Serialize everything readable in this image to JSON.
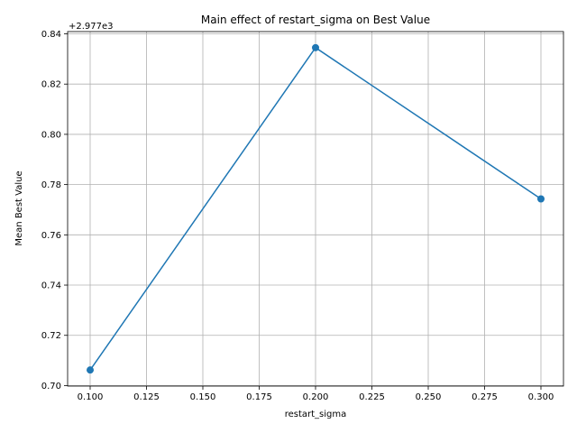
{
  "chart_data": {
    "type": "line",
    "title": "Main effect of restart_sigma on Best Value",
    "xlabel": "restart_sigma",
    "ylabel": "Mean Best Value",
    "y_offset_label": "+2.977e3",
    "x": [
      0.1,
      0.2,
      0.3
    ],
    "y": [
      2977.7062,
      2977.8345,
      2977.7743
    ],
    "xlim": [
      0.09,
      0.31
    ],
    "ylim": [
      2977.6998,
      2977.8409
    ],
    "x_ticks": [
      0.1,
      0.125,
      0.15,
      0.175,
      0.2,
      0.225,
      0.25,
      0.275,
      0.3
    ],
    "x_tick_labels": [
      "0.100",
      "0.125",
      "0.150",
      "0.175",
      "0.200",
      "0.225",
      "0.250",
      "0.275",
      "0.300"
    ],
    "y_ticks": [
      0.7,
      0.72,
      0.74,
      0.76,
      0.78,
      0.8,
      0.82,
      0.84
    ],
    "y_tick_labels": [
      "0.70",
      "0.72",
      "0.74",
      "0.76",
      "0.78",
      "0.80",
      "0.82",
      "0.84"
    ],
    "grid": true,
    "marker": "circle",
    "color": "#1f77b4"
  }
}
